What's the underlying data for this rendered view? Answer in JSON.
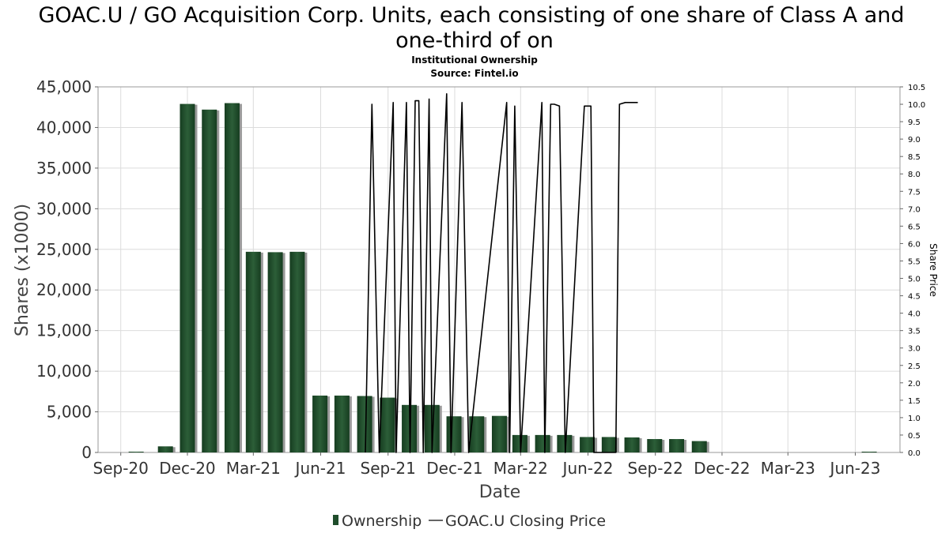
{
  "chart_data": {
    "type": "bar",
    "title_line1": "GOAC.U / GO Acquisition Corp. Units, each consisting of one share of Class A and",
    "title_line2": "one-third of on",
    "subtitle": "Institutional Ownership",
    "source": "Source: Fintel.io",
    "xlabel": "Date",
    "ylabel": "Shares (x1000)",
    "y2label": "Share Price",
    "ylim": [
      0,
      45000
    ],
    "y2lim": [
      0,
      10.5
    ],
    "yticks": [
      0,
      5000,
      10000,
      15000,
      20000,
      25000,
      30000,
      35000,
      40000,
      45000
    ],
    "ytick_labels": [
      "0",
      "5,000",
      "10,000",
      "15,000",
      "20,000",
      "25,000",
      "30,000",
      "35,000",
      "40,000",
      "45,000"
    ],
    "y2ticks": [
      0,
      0.5,
      1,
      1.5,
      2,
      2.5,
      3,
      3.5,
      4,
      4.5,
      5,
      5.5,
      6,
      6.5,
      7,
      7.5,
      8,
      8.5,
      9,
      9.5,
      10,
      10.5
    ],
    "y2tick_labels": [
      "0.0",
      "0.5",
      "1.0",
      "1.5",
      "2.0",
      "2.5",
      "3.0",
      "3.5",
      "4.0",
      "4.5",
      "5.0",
      "5.5",
      "6.0",
      "6.5",
      "7.0",
      "7.5",
      "8.0",
      "8.5",
      "9.0",
      "9.5",
      "10.0",
      "10.5"
    ],
    "xlim": [
      "2020-08-01",
      "2023-08-01"
    ],
    "xticks": [
      {
        "label": "Sep-20",
        "date": "2020-09-01"
      },
      {
        "label": "Dec-20",
        "date": "2020-12-01"
      },
      {
        "label": "Mar-21",
        "date": "2021-03-01"
      },
      {
        "label": "Jun-21",
        "date": "2021-06-01"
      },
      {
        "label": "Sep-21",
        "date": "2021-09-01"
      },
      {
        "label": "Dec-21",
        "date": "2021-12-01"
      },
      {
        "label": "Mar-22",
        "date": "2022-03-01"
      },
      {
        "label": "Jun-22",
        "date": "2022-06-01"
      },
      {
        "label": "Sep-22",
        "date": "2022-09-01"
      },
      {
        "label": "Dec-22",
        "date": "2022-12-01"
      },
      {
        "label": "Mar-23",
        "date": "2023-03-01"
      },
      {
        "label": "Jun-23",
        "date": "2023-06-01"
      }
    ],
    "grid": true,
    "legend_position": "bottom",
    "colors": {
      "bar": "#1f4d2b",
      "bar_shadow": "#9a9a9a",
      "line": "#000000",
      "grid": "#dcdcdc"
    },
    "series": [
      {
        "name": "Ownership",
        "type": "bar",
        "points": [
          {
            "date": "2020-09-22",
            "value": 30
          },
          {
            "date": "2020-11-01",
            "value": 750
          },
          {
            "date": "2020-12-01",
            "value": 42900
          },
          {
            "date": "2020-12-31",
            "value": 42200
          },
          {
            "date": "2021-01-31",
            "value": 43000
          },
          {
            "date": "2021-03-01",
            "value": 24700
          },
          {
            "date": "2021-03-31",
            "value": 24650
          },
          {
            "date": "2021-04-30",
            "value": 24700
          },
          {
            "date": "2021-05-31",
            "value": 7000
          },
          {
            "date": "2021-06-30",
            "value": 7000
          },
          {
            "date": "2021-07-31",
            "value": 6950
          },
          {
            "date": "2021-08-31",
            "value": 6750
          },
          {
            "date": "2021-09-30",
            "value": 5850
          },
          {
            "date": "2021-10-31",
            "value": 5850
          },
          {
            "date": "2021-11-30",
            "value": 4450
          },
          {
            "date": "2021-12-31",
            "value": 4450
          },
          {
            "date": "2022-01-31",
            "value": 4500
          },
          {
            "date": "2022-02-28",
            "value": 2150
          },
          {
            "date": "2022-03-31",
            "value": 2150
          },
          {
            "date": "2022-04-30",
            "value": 2150
          },
          {
            "date": "2022-05-31",
            "value": 1900
          },
          {
            "date": "2022-06-30",
            "value": 1900
          },
          {
            "date": "2022-07-31",
            "value": 1850
          },
          {
            "date": "2022-08-31",
            "value": 1650
          },
          {
            "date": "2022-09-30",
            "value": 1650
          },
          {
            "date": "2022-10-31",
            "value": 1400
          },
          {
            "date": "2023-06-20",
            "value": 80
          }
        ]
      },
      {
        "name": "GOAC.U Closing Price",
        "type": "line",
        "points": [
          {
            "date": "2021-08-01",
            "value": 0
          },
          {
            "date": "2021-08-10",
            "value": 10.0
          },
          {
            "date": "2021-08-20",
            "value": 0
          },
          {
            "date": "2021-09-08",
            "value": 10.05
          },
          {
            "date": "2021-09-12",
            "value": 0
          },
          {
            "date": "2021-09-26",
            "value": 10.05
          },
          {
            "date": "2021-10-01",
            "value": 0
          },
          {
            "date": "2021-10-08",
            "value": 10.1
          },
          {
            "date": "2021-10-13",
            "value": 10.1
          },
          {
            "date": "2021-10-19",
            "value": 0
          },
          {
            "date": "2021-10-27",
            "value": 10.15
          },
          {
            "date": "2021-10-31",
            "value": 0
          },
          {
            "date": "2021-11-20",
            "value": 10.3
          },
          {
            "date": "2021-11-26",
            "value": 0
          },
          {
            "date": "2021-12-11",
            "value": 10.05
          },
          {
            "date": "2021-12-20",
            "value": 0
          },
          {
            "date": "2022-02-10",
            "value": 10.05
          },
          {
            "date": "2022-02-14",
            "value": 0
          },
          {
            "date": "2022-02-21",
            "value": 9.95
          },
          {
            "date": "2022-03-01",
            "value": 0
          },
          {
            "date": "2022-03-30",
            "value": 10.05
          },
          {
            "date": "2022-04-03",
            "value": 0
          },
          {
            "date": "2022-04-11",
            "value": 10.0
          },
          {
            "date": "2022-04-16",
            "value": 10.0
          },
          {
            "date": "2022-04-23",
            "value": 9.95
          },
          {
            "date": "2022-05-01",
            "value": 0
          },
          {
            "date": "2022-05-27",
            "value": 9.95
          },
          {
            "date": "2022-06-05",
            "value": 9.95
          },
          {
            "date": "2022-06-09",
            "value": 0
          },
          {
            "date": "2022-07-09",
            "value": 0
          },
          {
            "date": "2022-07-14",
            "value": 10.0
          },
          {
            "date": "2022-07-22",
            "value": 10.05
          },
          {
            "date": "2022-08-08",
            "value": 10.05
          }
        ]
      }
    ]
  }
}
